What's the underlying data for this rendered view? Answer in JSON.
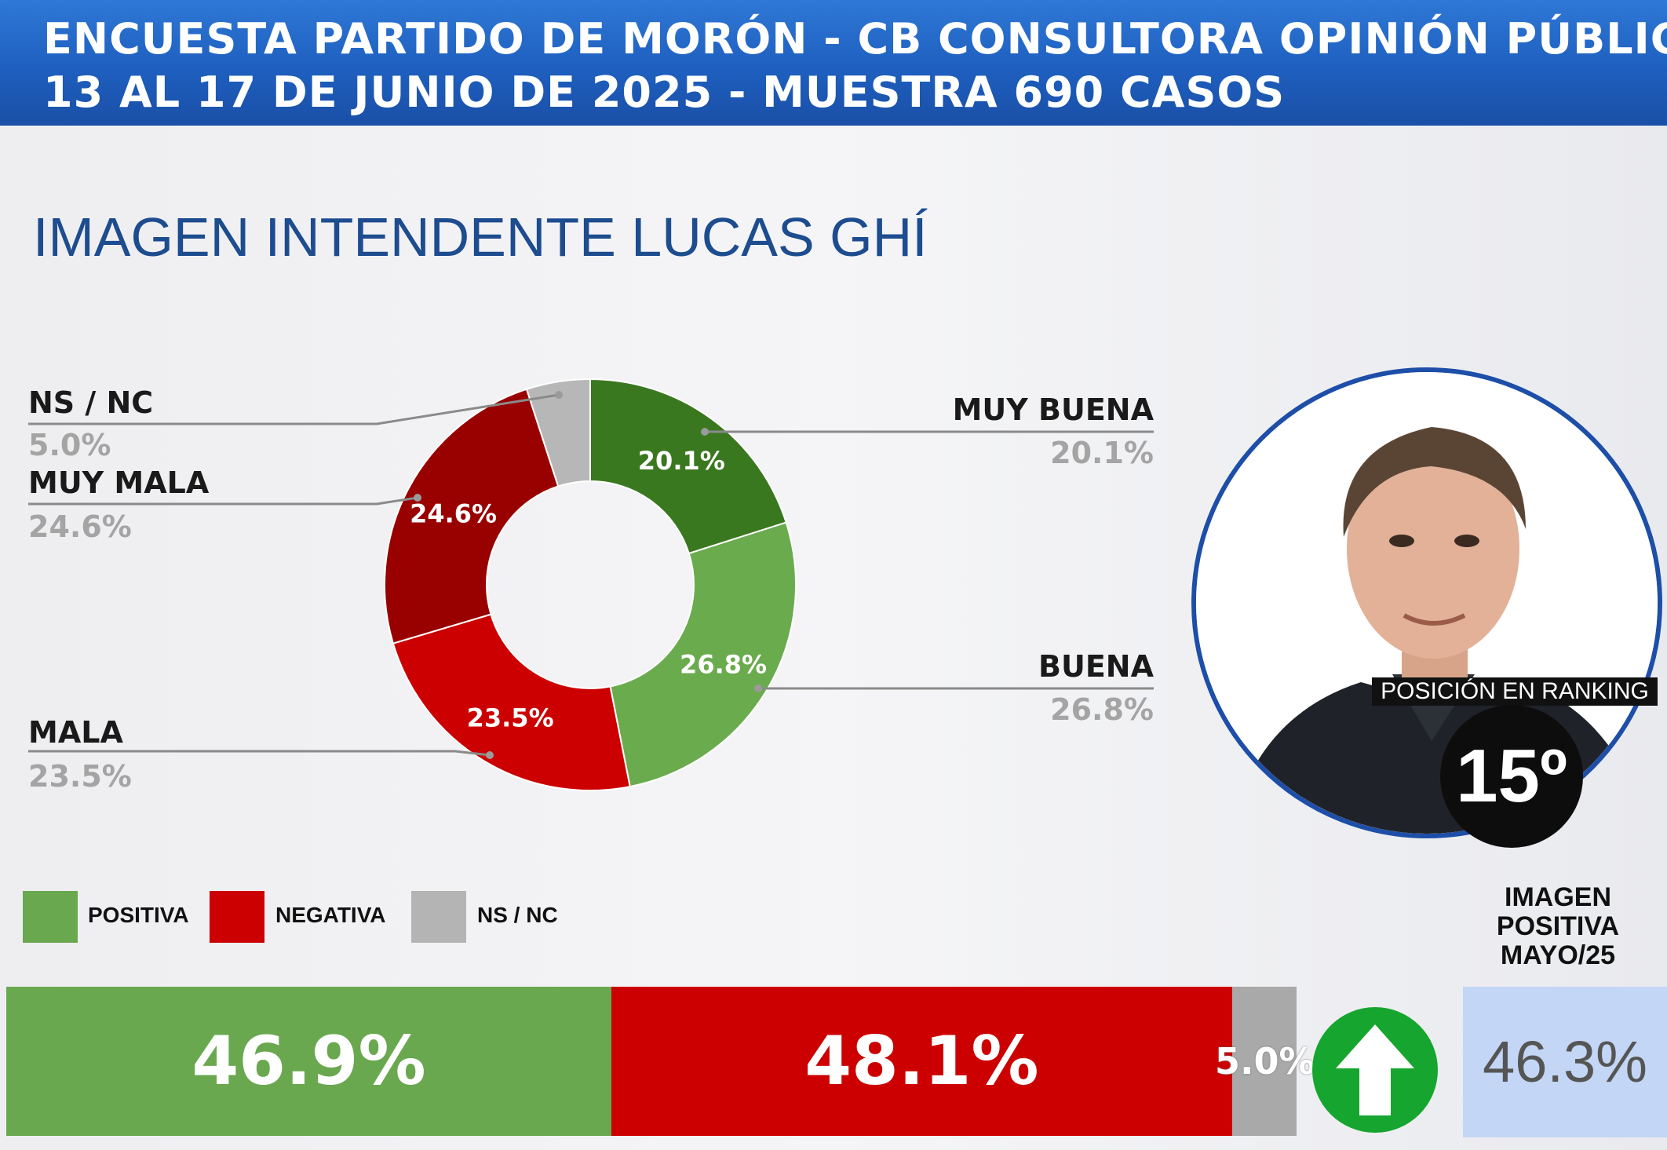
{
  "header": {
    "line1": "ENCUESTA PARTIDO DE MORÓN - CB CONSULTORA OPINIÓN PÚBLICA",
    "line2": "13 AL 17 DE JUNIO DE 2025 - MUESTRA 690 CASOS"
  },
  "subtitle": "IMAGEN INTENDENTE  LUCAS GHÍ",
  "chart_data": [
    {
      "type": "pie",
      "categories": [
        "MUY BUENA",
        "BUENA",
        "MALA",
        "MUY MALA",
        "NS / NC"
      ],
      "values": [
        20.1,
        26.8,
        23.5,
        24.6,
        5.0
      ],
      "value_labels": [
        "20.1%",
        "26.8%",
        "23.5%",
        "24.6%",
        "5.0%"
      ],
      "colors": [
        "#3a7820",
        "#6aab4e",
        "#cc0000",
        "#990000",
        "#b7b7b7"
      ],
      "donut": true
    },
    {
      "type": "bar",
      "stacked": true,
      "orientation": "horizontal",
      "categories": [
        "POSITIVA",
        "NEGATIVA",
        "NS / NC"
      ],
      "values": [
        46.9,
        48.1,
        5.0
      ],
      "value_labels": [
        "46.9%",
        "48.1%",
        "5.0%"
      ],
      "colors": [
        "#6aa84f",
        "#cc0000",
        "#a9a9a9"
      ]
    }
  ],
  "legend": {
    "positive": "POSITIVA",
    "negative": "NEGATIVA",
    "nsnc": "NS / NC"
  },
  "ranking": {
    "label": "POSICIÓN EN RANKING",
    "value": "15º"
  },
  "previous": {
    "title_line1": "IMAGEN",
    "title_line2": "POSITIVA",
    "title_line3": "MAYO/25",
    "value": "46.3%",
    "trend_icon": "arrow-up-icon"
  }
}
